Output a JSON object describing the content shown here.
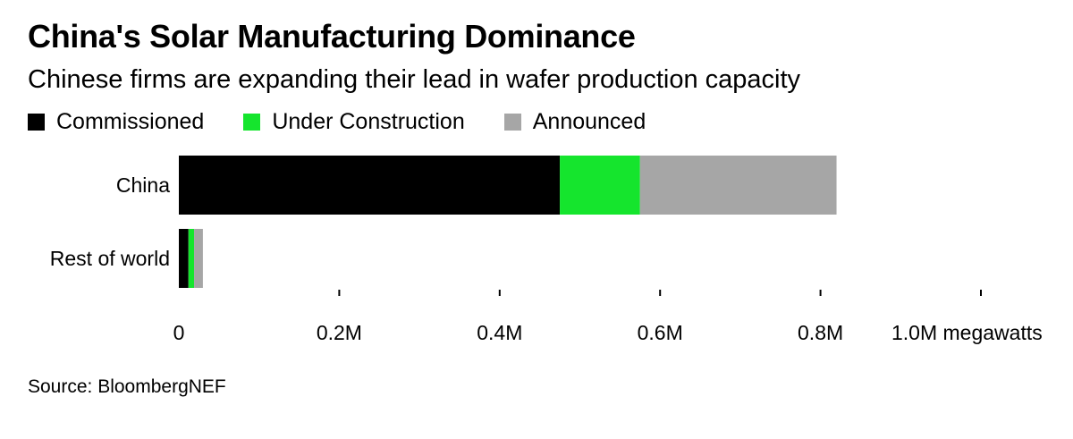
{
  "chart_data": {
    "type": "bar",
    "orientation": "horizontal",
    "stacked": true,
    "title": "China's Solar Manufacturing Dominance",
    "subtitle": "Chinese firms are expanding their lead in wafer production capacity",
    "categories": [
      "China",
      "Rest of world"
    ],
    "series": [
      {
        "name": "Commissioned",
        "color": "#000000",
        "values": [
          475000,
          12000
        ]
      },
      {
        "name": "Under Construction",
        "color": "#15e52d",
        "values": [
          100000,
          7000
        ]
      },
      {
        "name": "Announced",
        "color": "#a6a6a6",
        "values": [
          245000,
          11000
        ]
      }
    ],
    "xlim": [
      0,
      1000000
    ],
    "ticks": [
      {
        "value": 0,
        "label": "0"
      },
      {
        "value": 200000,
        "label": "0.2M"
      },
      {
        "value": 400000,
        "label": "0.4M"
      },
      {
        "value": 600000,
        "label": "0.6M"
      },
      {
        "value": 800000,
        "label": "0.8M"
      },
      {
        "value": 1000000,
        "label": "1.0M megawatts"
      }
    ],
    "xlabel": "",
    "ylabel": "",
    "legend_position": "top-left",
    "grid": false
  },
  "source": "Source: BloombergNEF"
}
